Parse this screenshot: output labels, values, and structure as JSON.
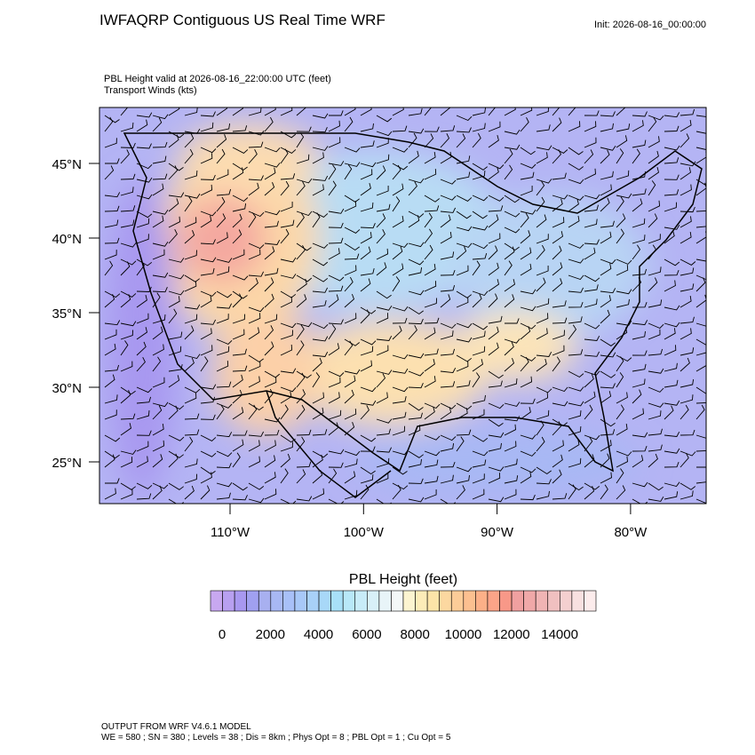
{
  "header": {
    "title": "IWFAQRP Contiguous US Real Time WRF",
    "init": "Init: 2026-08-16_00:00:00"
  },
  "map": {
    "field_label": "PBL Height valid at 2026-08-16_22:00:00 UTC   (feet)",
    "wind_label": "Transport Winds   (kts)",
    "lat_labels": [
      "45°N",
      "40°N",
      "35°N",
      "30°N",
      "25°N"
    ],
    "lon_labels": [
      "110°W",
      "100°W",
      "90°W",
      "80°W"
    ]
  },
  "colorbar": {
    "title": "PBL Height  (feet)",
    "colors": [
      "#c8a8f0",
      "#b8a0f0",
      "#a898f0",
      "#a0a0f0",
      "#a8b0f0",
      "#a8b8f4",
      "#a8c0f8",
      "#a8c8f8",
      "#a8d0f8",
      "#a8d8f8",
      "#a8e0f8",
      "#b8e8f8",
      "#c8ecf8",
      "#d8f0f8",
      "#e8f4f8",
      "#f4f8f8",
      "#fcf4d0",
      "#fcecb8",
      "#fce4a8",
      "#fcd8a0",
      "#fccc98",
      "#fcc090",
      "#fcb088",
      "#fca488",
      "#f89888",
      "#f0a0a0",
      "#f0a8a8",
      "#f0b4b4",
      "#f0c0c0",
      "#f4d0d0",
      "#f8e0e0",
      "#fcecec"
    ],
    "labels": [
      "0",
      "2000",
      "4000",
      "6000",
      "8000",
      "10000",
      "12000",
      "14000"
    ]
  },
  "footer": {
    "line1": "OUTPUT FROM WRF V4.6.1 MODEL",
    "line2": "WE = 580 ; SN = 380 ; Levels = 38 ; Dis = 8km ; Phys Opt = 8 ; PBL Opt = 1 ; Cu Opt = 5"
  }
}
